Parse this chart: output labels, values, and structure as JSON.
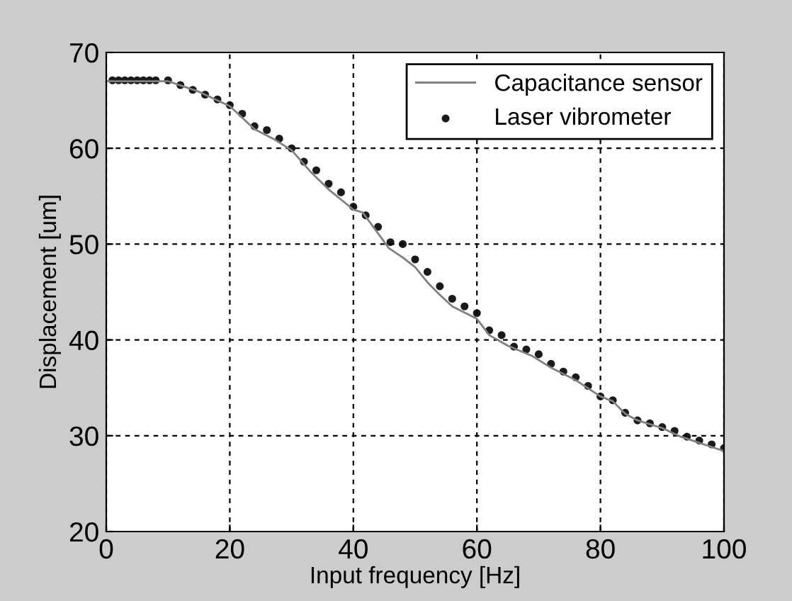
{
  "chart_data": {
    "type": "line",
    "xlabel": "Input frequency [Hz]",
    "ylabel": "Displacement [um]",
    "xlim": [
      0,
      100
    ],
    "ylim": [
      20,
      70
    ],
    "xticks": [
      0,
      20,
      40,
      60,
      80,
      100
    ],
    "yticks": [
      20,
      30,
      40,
      50,
      60,
      70
    ],
    "grid": true,
    "legend": "top right",
    "series": [
      {
        "name": "Capacitance sensor",
        "color": "#808080",
        "marker": "none",
        "line_style": "solid",
        "x": [
          0,
          10,
          15,
          20,
          24,
          27,
          30,
          33,
          36,
          40,
          41.5,
          43.8,
          45.7,
          48,
          50,
          52,
          54,
          56,
          60,
          62,
          65,
          69,
          72,
          76,
          80,
          82,
          84,
          86,
          90,
          93,
          100
        ],
        "values": [
          67.0,
          67.0,
          65.9,
          64.4,
          62.0,
          61.0,
          59.8,
          57.6,
          55.7,
          53.6,
          53.3,
          51.3,
          49.6,
          48.6,
          47.6,
          46.0,
          44.7,
          43.5,
          42.2,
          40.5,
          39.4,
          38.3,
          37.1,
          35.8,
          34.1,
          33.6,
          32.3,
          31.6,
          30.8,
          29.9,
          28.4
        ]
      },
      {
        "name": "Laser vibrometer",
        "type": "scatter",
        "color": "#1a1a1a",
        "marker": "circle",
        "x": [
          1,
          2,
          3,
          4,
          5,
          6,
          7,
          8,
          10,
          12,
          14,
          16,
          18,
          20,
          22,
          24,
          26,
          28,
          30,
          32,
          34,
          36,
          38,
          40,
          42,
          44,
          46,
          48,
          50,
          52,
          54,
          56,
          58,
          60,
          62,
          64,
          66,
          68,
          70,
          72,
          74,
          76,
          78,
          80,
          82,
          84,
          86,
          88,
          90,
          92,
          94,
          96,
          98,
          100
        ],
        "values": [
          67.1,
          67.1,
          67.1,
          67.1,
          67.1,
          67.1,
          67.1,
          67.1,
          67.1,
          66.6,
          66.1,
          65.6,
          65.1,
          64.5,
          63.6,
          62.3,
          61.9,
          61.0,
          60.0,
          58.6,
          57.7,
          56.3,
          55.4,
          53.9,
          53.0,
          51.8,
          50.2,
          50.0,
          48.4,
          47.1,
          45.6,
          44.3,
          43.5,
          42.8,
          41.0,
          40.5,
          39.3,
          39.0,
          38.5,
          37.5,
          36.7,
          36.1,
          35.2,
          34.1,
          33.7,
          32.4,
          31.6,
          31.3,
          30.9,
          30.5,
          29.9,
          29.5,
          29.1,
          28.7
        ]
      }
    ]
  }
}
